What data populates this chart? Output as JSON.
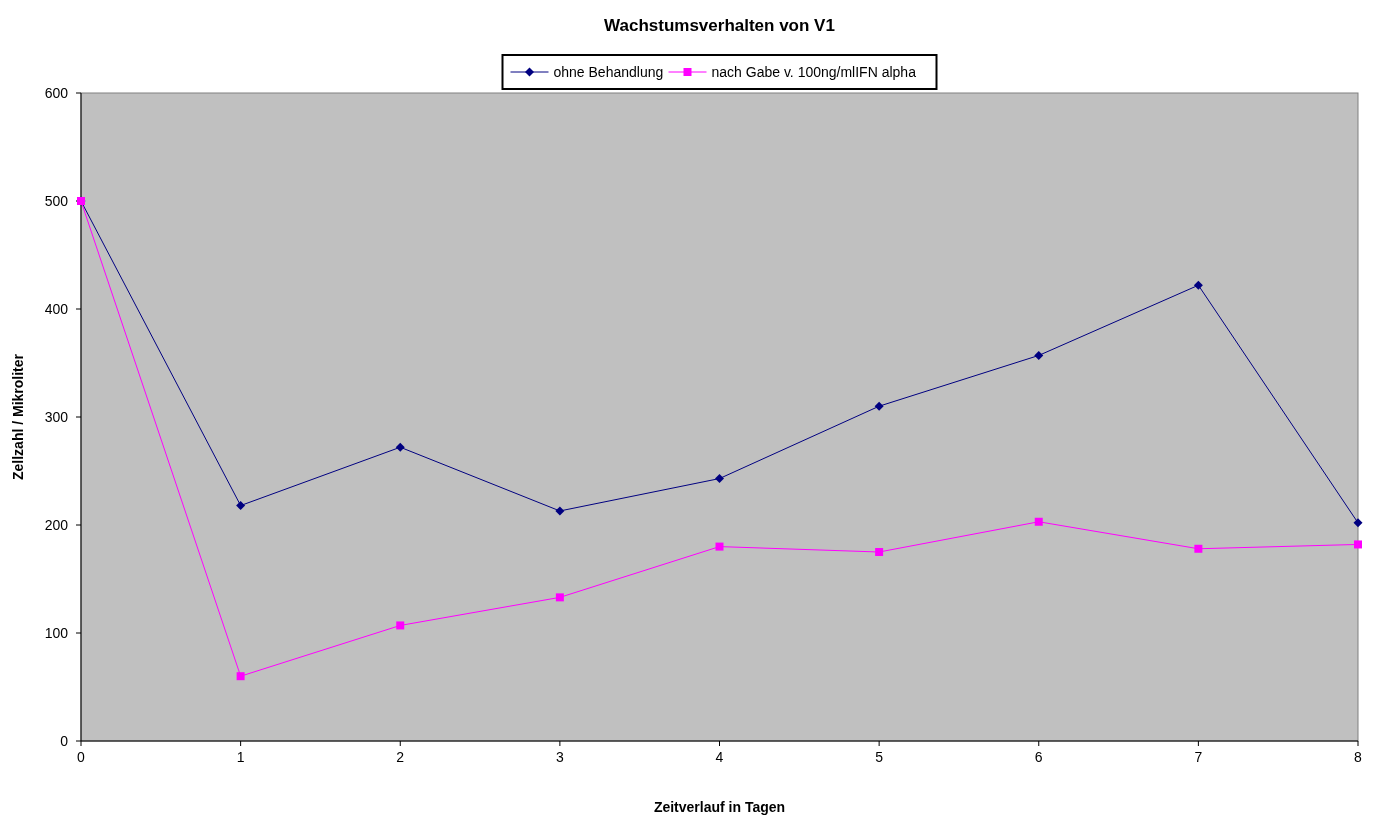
{
  "chart_data": {
    "type": "line",
    "title": "Wachstumsverhalten von V1",
    "xlabel": "Zeitverlauf in Tagen",
    "ylabel": "Zellzahl / Mikroliter",
    "x": [
      0,
      1,
      2,
      3,
      4,
      5,
      6,
      7,
      8
    ],
    "series": [
      {
        "name": "ohne Behandlung",
        "color": "#000080",
        "marker": "diamond",
        "values": [
          500,
          218,
          272,
          213,
          243,
          310,
          357,
          422,
          202
        ]
      },
      {
        "name": "nach Gabe v. 100ng/mlIFN alpha",
        "color": "#ff00ff",
        "marker": "square",
        "values": [
          500,
          60,
          107,
          133,
          180,
          175,
          203,
          178,
          182
        ]
      }
    ],
    "xlim": [
      0,
      8
    ],
    "xticks": [
      0,
      1,
      2,
      3,
      4,
      5,
      6,
      7,
      8
    ],
    "ylim": [
      0,
      600
    ],
    "yticks": [
      0,
      100,
      200,
      300,
      400,
      500,
      600
    ],
    "grid": false,
    "legend": "top",
    "line_style": "solid"
  }
}
